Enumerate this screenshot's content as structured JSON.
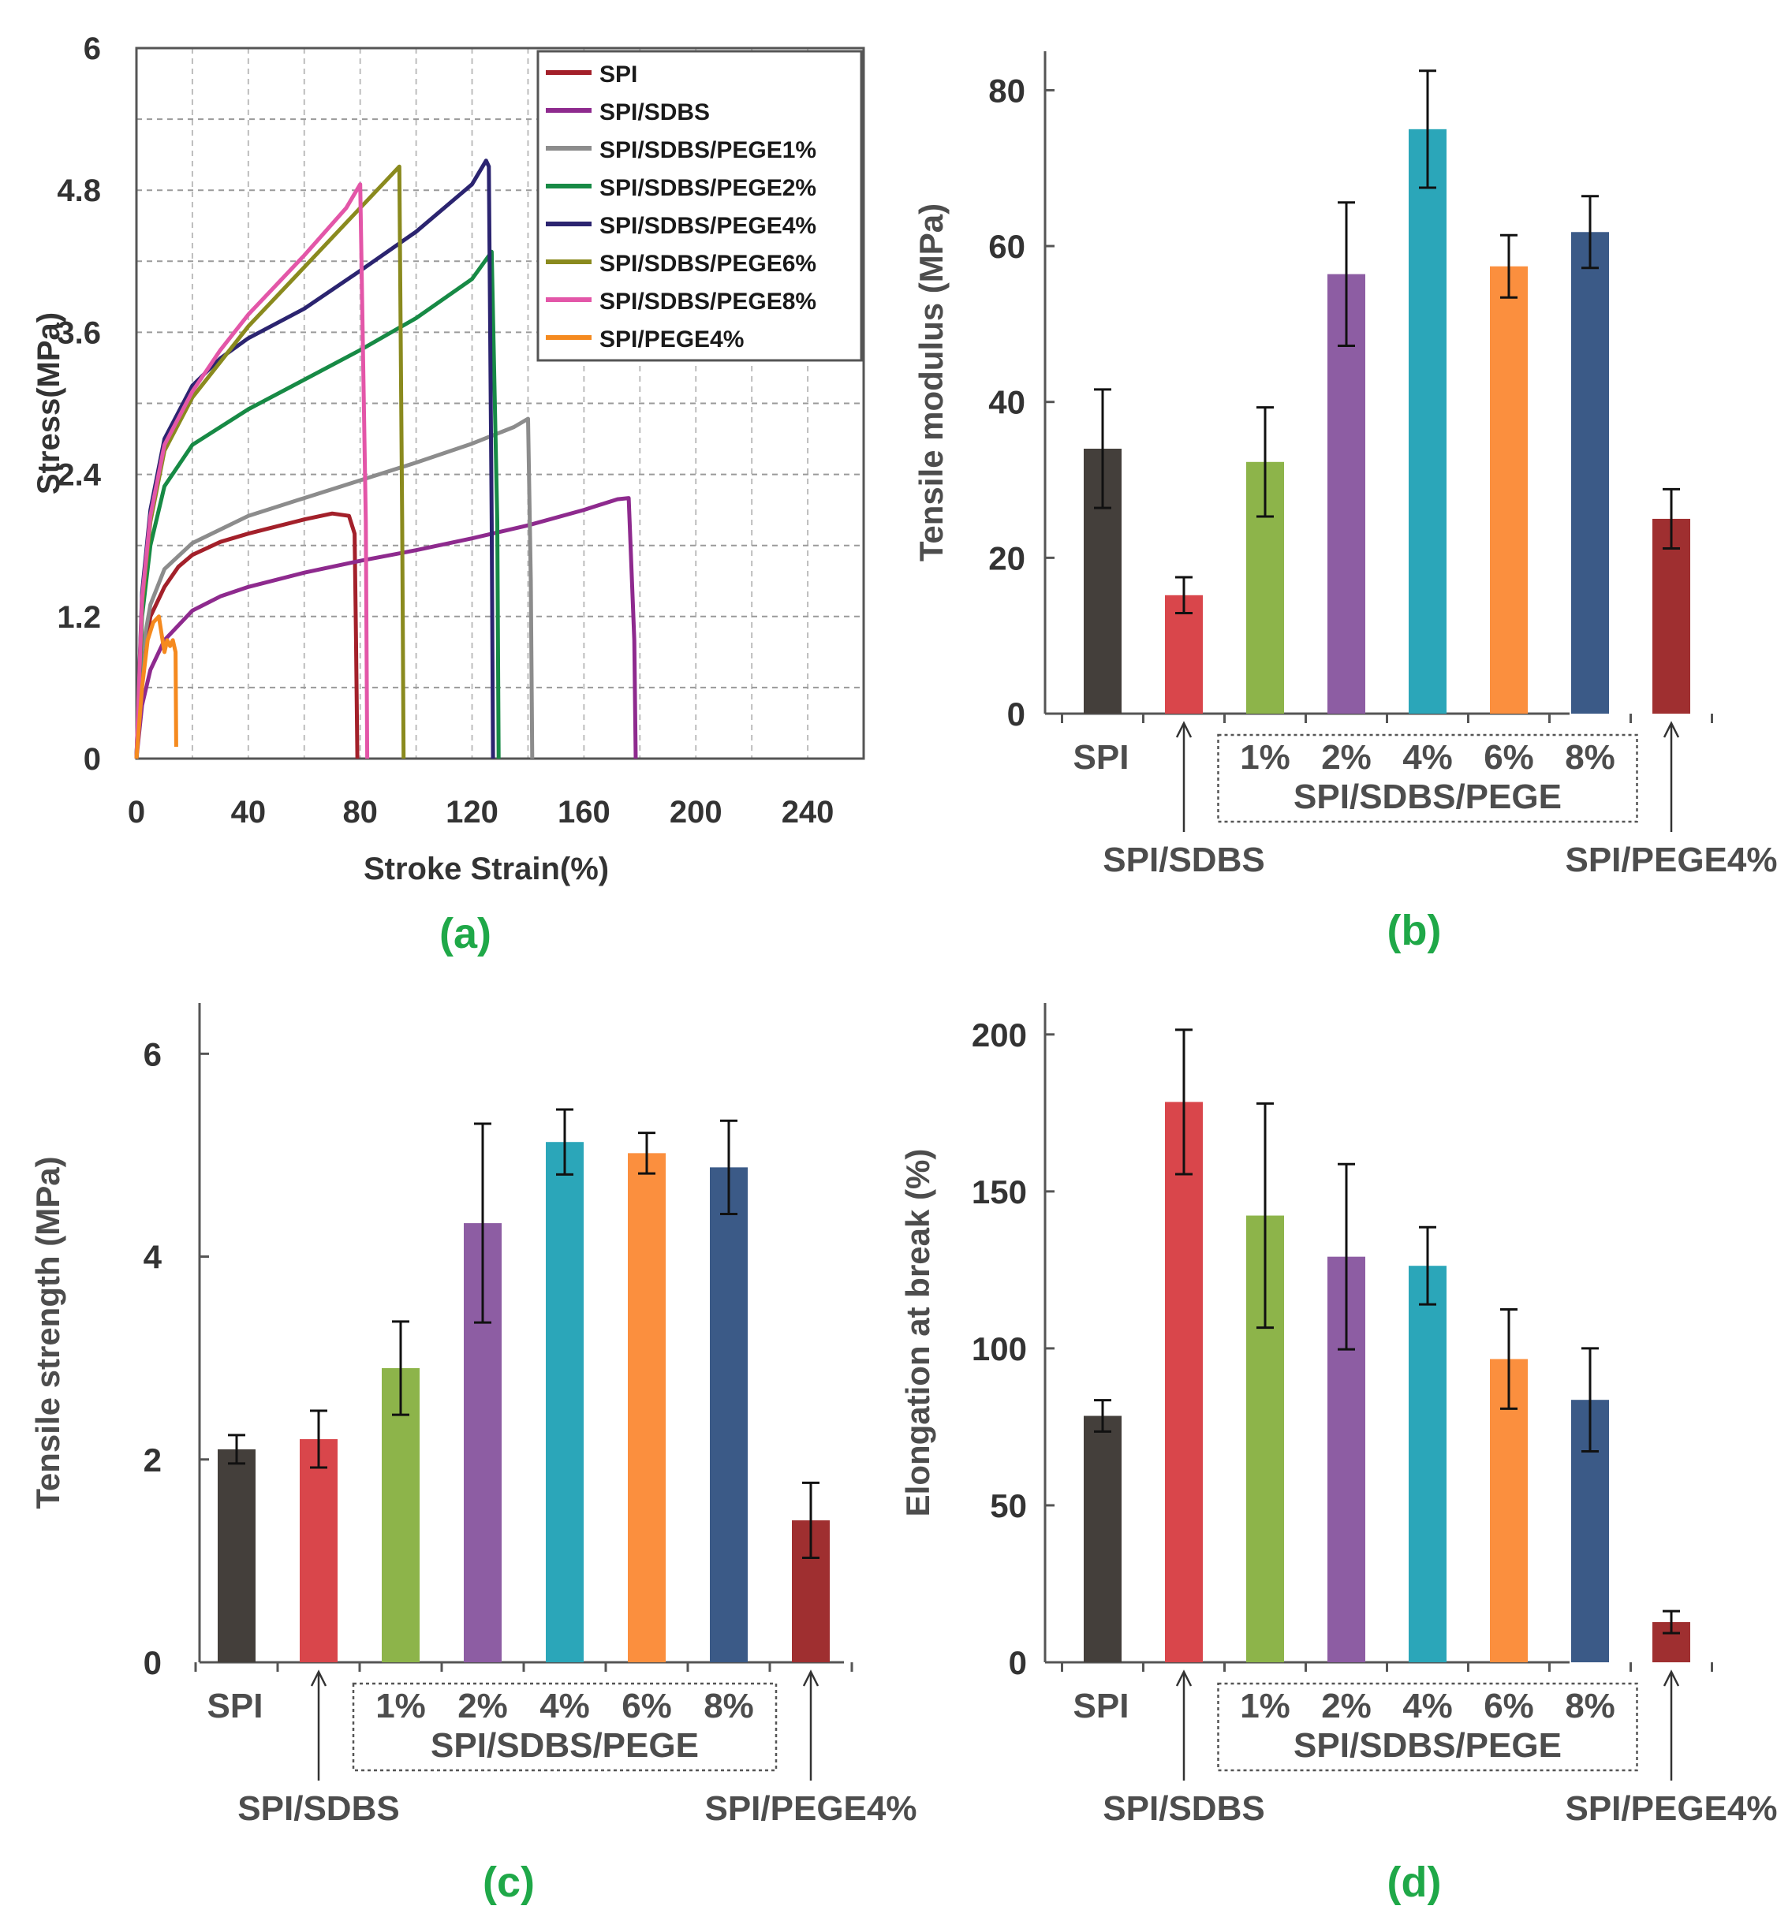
{
  "chart_data": [
    {
      "type": "line",
      "panel_label": "(a)",
      "xlabel": "Stroke Strain(%)",
      "ylabel": "Stress(MPa)",
      "xlim": [
        0,
        260
      ],
      "ylim": [
        0,
        6
      ],
      "xticks": [
        "0",
        "40",
        "80",
        "120",
        "160",
        "200",
        "240"
      ],
      "yticks": [
        "0",
        "1.2",
        "2.4",
        "3.6",
        "4.8",
        "6"
      ],
      "grid": true,
      "legend_position": "top-right",
      "series": [
        {
          "name": "SPI",
          "color": "#a3202a",
          "x": [
            0,
            2,
            5,
            10,
            15,
            20,
            30,
            40,
            50,
            60,
            70,
            76,
            78,
            78.5,
            79
          ],
          "y": [
            0,
            0.8,
            1.2,
            1.45,
            1.62,
            1.72,
            1.83,
            1.9,
            1.96,
            2.02,
            2.07,
            2.05,
            1.9,
            1.0,
            0
          ]
        },
        {
          "name": "SPI/SDBS",
          "color": "#8e2a8e",
          "x": [
            0,
            2,
            5,
            10,
            20,
            30,
            40,
            60,
            80,
            100,
            120,
            140,
            160,
            172,
            176,
            178,
            178.5
          ],
          "y": [
            0,
            0.45,
            0.75,
            1.0,
            1.25,
            1.37,
            1.45,
            1.57,
            1.67,
            1.76,
            1.86,
            1.97,
            2.1,
            2.19,
            2.2,
            1.0,
            0
          ]
        },
        {
          "name": "SPI/SDBS/PEGE1%",
          "color": "#8c8c8c",
          "x": [
            0,
            2,
            5,
            10,
            20,
            40,
            60,
            80,
            100,
            120,
            135,
            140,
            141,
            141.5
          ],
          "y": [
            0,
            0.9,
            1.3,
            1.6,
            1.82,
            2.05,
            2.2,
            2.35,
            2.5,
            2.66,
            2.8,
            2.87,
            1.5,
            0
          ]
        },
        {
          "name": "SPI/SDBS/PEGE2%",
          "color": "#178a45",
          "x": [
            0,
            2,
            5,
            10,
            20,
            40,
            60,
            80,
            100,
            120,
            127,
            129,
            129.5
          ],
          "y": [
            0,
            1.2,
            1.8,
            2.3,
            2.65,
            2.95,
            3.2,
            3.45,
            3.72,
            4.05,
            4.28,
            2.0,
            0
          ]
        },
        {
          "name": "SPI/SDBS/PEGE4%",
          "color": "#2b2470",
          "x": [
            0,
            2,
            5,
            10,
            20,
            30,
            40,
            60,
            80,
            100,
            120,
            125,
            126,
            127,
            127.5
          ],
          "y": [
            0,
            1.4,
            2.1,
            2.7,
            3.15,
            3.38,
            3.55,
            3.8,
            4.12,
            4.45,
            4.85,
            5.05,
            5.0,
            2.0,
            0
          ]
        },
        {
          "name": "SPI/SDBS/PEGE6%",
          "color": "#8a8a1e",
          "x": [
            0,
            2,
            5,
            10,
            20,
            30,
            40,
            60,
            80,
            90,
            94,
            95,
            95.5
          ],
          "y": [
            0,
            1.3,
            2.0,
            2.6,
            3.05,
            3.35,
            3.65,
            4.15,
            4.65,
            4.9,
            5.0,
            2.0,
            0
          ]
        },
        {
          "name": "SPI/SDBS/PEGE8%",
          "color": "#e356a8",
          "x": [
            0,
            2,
            5,
            10,
            20,
            30,
            40,
            60,
            75,
            80,
            82,
            82.5
          ],
          "y": [
            0,
            1.35,
            2.05,
            2.65,
            3.1,
            3.45,
            3.75,
            4.25,
            4.65,
            4.85,
            2.0,
            0
          ]
        },
        {
          "name": "SPI/PEGE4%",
          "color": "#f58a1f",
          "x": [
            0,
            2,
            4,
            6,
            8,
            9,
            10,
            11,
            12,
            13,
            14,
            14.2
          ],
          "y": [
            0,
            0.6,
            1.0,
            1.15,
            1.2,
            1.05,
            0.9,
            1.0,
            0.95,
            1.0,
            0.9,
            0.1
          ]
        }
      ]
    },
    {
      "type": "bar",
      "panel_label": "(b)",
      "ylabel": "Tensile modulus (MPa)",
      "ylim": [
        0,
        85
      ],
      "yticks": [
        "0",
        "20",
        "40",
        "60",
        "80"
      ],
      "categories": [
        "SPI",
        "SPI/SDBS",
        "1%",
        "2%",
        "4%",
        "6%",
        "8%",
        "SPI/PEGE4%"
      ],
      "values": [
        34,
        15.2,
        32.3,
        56.4,
        75,
        57.4,
        61.8,
        25
      ],
      "errors": [
        7.6,
        2.3,
        7,
        9.2,
        7.5,
        4,
        4.6,
        3.8
      ],
      "colors": [
        "#443f3b",
        "#d9464b",
        "#8db44a",
        "#8d5da3",
        "#2ba6b9",
        "#fb8f3e",
        "#3b5a87",
        "#9f2f30"
      ],
      "group_label": "SPI/SDBS/PEGE",
      "labels": {
        "spi": "SPI",
        "sdbs": "SPI/SDBS",
        "pege4": "SPI/PEGE4%",
        "pcts": [
          "1%",
          "2%",
          "4%",
          "6%",
          "8%"
        ]
      }
    },
    {
      "type": "bar",
      "panel_label": "(c)",
      "ylabel": "Tensile strength (MPa)",
      "ylim": [
        0,
        6.5
      ],
      "yticks": [
        "0",
        "2",
        "4",
        "6"
      ],
      "categories": [
        "SPI",
        "SPI/SDBS",
        "1%",
        "2%",
        "4%",
        "6%",
        "8%",
        "SPI/PEGE4%"
      ],
      "values": [
        2.1,
        2.2,
        2.9,
        4.33,
        5.13,
        5.02,
        4.88,
        1.4
      ],
      "errors": [
        0.14,
        0.28,
        0.46,
        0.98,
        0.32,
        0.2,
        0.46,
        0.37
      ],
      "colors": [
        "#443f3b",
        "#d9464b",
        "#8db44a",
        "#8d5da3",
        "#2ba6b9",
        "#fb8f3e",
        "#3b5a87",
        "#9f2f30"
      ],
      "group_label": "SPI/SDBS/PEGE",
      "labels": {
        "spi": "SPI",
        "sdbs": "SPI/SDBS",
        "pege4": "SPI/PEGE4%",
        "pcts": [
          "1%",
          "2%",
          "4%",
          "6%",
          "8%"
        ]
      }
    },
    {
      "type": "bar",
      "panel_label": "(d)",
      "ylabel": "Elongation at break (%)",
      "ylim": [
        0,
        210
      ],
      "yticks": [
        "0",
        "50",
        "100",
        "150",
        "200"
      ],
      "categories": [
        "SPI",
        "SPI/SDBS",
        "1%",
        "2%",
        "4%",
        "6%",
        "8%",
        "SPI/PEGE4%"
      ],
      "values": [
        78.5,
        178.5,
        142.3,
        129.2,
        126.3,
        96.6,
        83.6,
        12.8
      ],
      "errors": [
        5,
        23,
        35.7,
        29.5,
        12.3,
        15.8,
        16.4,
        3.5
      ],
      "colors": [
        "#443f3b",
        "#d9464b",
        "#8db44a",
        "#8d5da3",
        "#2ba6b9",
        "#fb8f3e",
        "#3b5a87",
        "#9f2f30"
      ],
      "group_label": "SPI/SDBS/PEGE",
      "labels": {
        "spi": "SPI",
        "sdbs": "SPI/SDBS",
        "pege4": "SPI/PEGE4%",
        "pcts": [
          "1%",
          "2%",
          "4%",
          "6%",
          "8%"
        ]
      }
    }
  ]
}
